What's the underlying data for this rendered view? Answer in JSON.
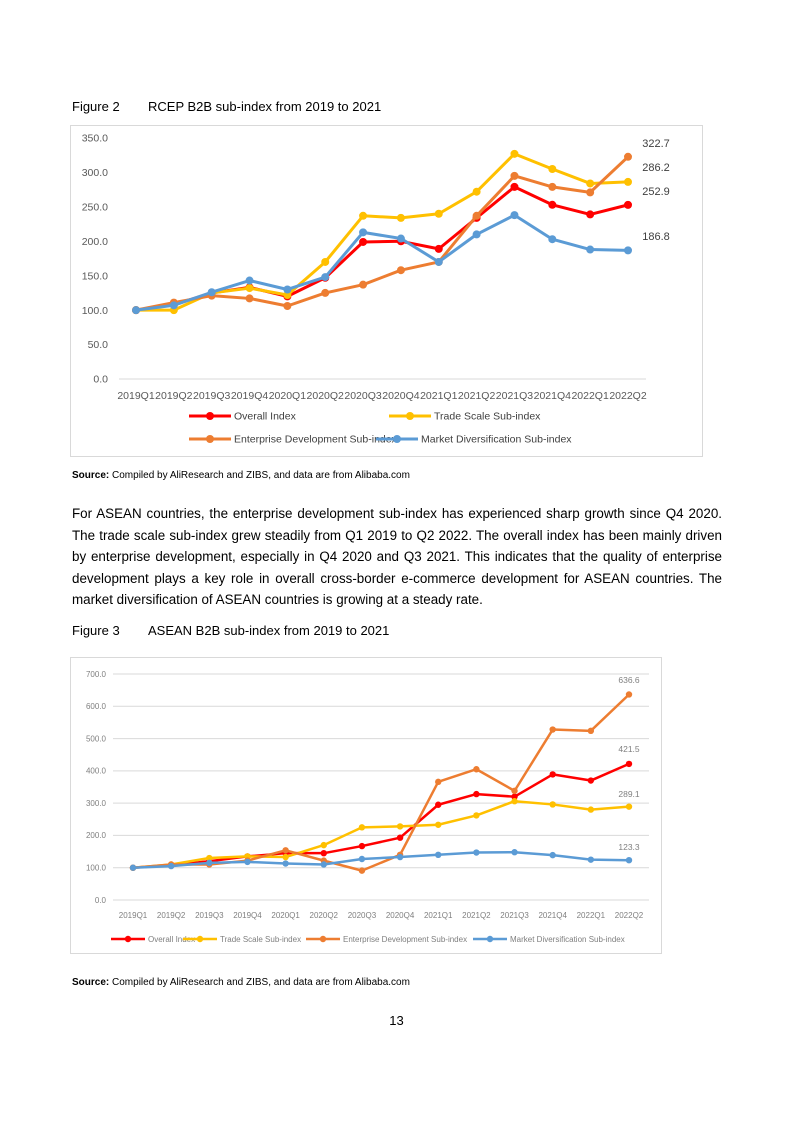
{
  "figure2": {
    "number": "Figure 2",
    "title": "RCEP B2B sub-index from 2019 to 2021"
  },
  "source1": {
    "label": "Source:",
    "text": " Compiled by AliResearch and ZIBS, and data are from Alibaba.com"
  },
  "paragraph": "For ASEAN countries, the enterprise development sub-index has experienced sharp growth since Q4 2020. The trade scale sub-index grew steadily from Q1 2019 to Q2 2022. The overall index has been mainly driven by enterprise development, especially in Q4 2020 and Q3 2021. This indicates that the quality of enterprise development plays a key role in overall cross-border e-commerce development for ASEAN countries. The market diversification of ASEAN countries is growing at a steady rate.",
  "figure3": {
    "number": "Figure 3",
    "title": "ASEAN B2B sub-index from 2019 to 2021"
  },
  "source2": {
    "label": "Source:",
    "text": " Compiled by AliResearch and ZIBS, and data are from Alibaba.com"
  },
  "page_number": "13",
  "chart_data": [
    {
      "type": "line",
      "title": "RCEP B2B sub-index from 2019 to 2021",
      "xlabel": "",
      "ylabel": "",
      "ylim": [
        0,
        350
      ],
      "yticks": [
        "0.0",
        "50.0",
        "100.0",
        "150.0",
        "200.0",
        "250.0",
        "300.0",
        "350.0"
      ],
      "grid": false,
      "legend": "bottom",
      "categories": [
        "2019Q1",
        "2019Q2",
        "2019Q3",
        "2019Q4",
        "2020Q1",
        "2020Q2",
        "2020Q3",
        "2020Q4",
        "2021Q1",
        "2021Q2",
        "2021Q3",
        "2021Q4",
        "2022Q1",
        "2022Q2"
      ],
      "series": [
        {
          "name": "Overall Index",
          "color": "#ff0000",
          "values": [
            100,
            108,
            125,
            133,
            120,
            147,
            199,
            200,
            189,
            234,
            279,
            253,
            239,
            252.9
          ]
        },
        {
          "name": "Trade Scale Sub-index",
          "color": "#ffc000",
          "values": [
            100,
            100,
            125,
            132,
            122,
            170,
            237,
            234,
            240,
            272,
            327,
            305,
            284,
            286.2
          ]
        },
        {
          "name": "Enterprise Development Sub-index",
          "color": "#ed7d31",
          "values": [
            100,
            111,
            121,
            117,
            106,
            125,
            137,
            158,
            170,
            237,
            295,
            279,
            271,
            322.7
          ]
        },
        {
          "name": "Market Diversification Sub-index",
          "color": "#5b9bd5",
          "values": [
            100,
            107,
            126,
            143,
            130,
            148,
            213,
            204,
            170,
            210,
            238,
            203,
            188,
            186.8
          ]
        }
      ],
      "annotations": [
        "322.7",
        "286.2",
        "252.9",
        "186.8"
      ]
    },
    {
      "type": "line",
      "title": "ASEAN B2B sub-index from 2019 to 2021",
      "xlabel": "",
      "ylabel": "",
      "ylim": [
        0,
        700
      ],
      "yticks": [
        "0.0",
        "100.0",
        "200.0",
        "300.0",
        "400.0",
        "500.0",
        "600.0",
        "700.0"
      ],
      "grid": true,
      "legend": "bottom",
      "categories": [
        "2019Q1",
        "2019Q2",
        "2019Q3",
        "2019Q4",
        "2020Q1",
        "2020Q2",
        "2020Q3",
        "2020Q4",
        "2021Q1",
        "2021Q2",
        "2021Q3",
        "2021Q4",
        "2022Q1",
        "2022Q2"
      ],
      "series": [
        {
          "name": "Overall Index",
          "color": "#ff0000",
          "values": [
            100,
            108,
            120,
            135,
            145,
            145,
            167,
            193,
            295,
            328,
            320,
            389,
            370,
            421.5
          ]
        },
        {
          "name": "Trade Scale Sub-index",
          "color": "#ffc000",
          "values": [
            100,
            110,
            130,
            135,
            133,
            170,
            225,
            228,
            233,
            262,
            306,
            296,
            280,
            289.1
          ]
        },
        {
          "name": "Enterprise Development Sub-index",
          "color": "#ed7d31",
          "values": [
            100,
            110,
            110,
            122,
            154,
            122,
            91,
            140,
            366,
            405,
            338,
            528,
            524,
            636.6
          ]
        },
        {
          "name": "Market Diversification Sub-index",
          "color": "#5b9bd5",
          "values": [
            100,
            105,
            115,
            118,
            113,
            110,
            127,
            133,
            140,
            147,
            148,
            139,
            125,
            123.3
          ]
        }
      ],
      "annotations": [
        "636.6",
        "421.5",
        "289.1",
        "123.3"
      ]
    }
  ]
}
